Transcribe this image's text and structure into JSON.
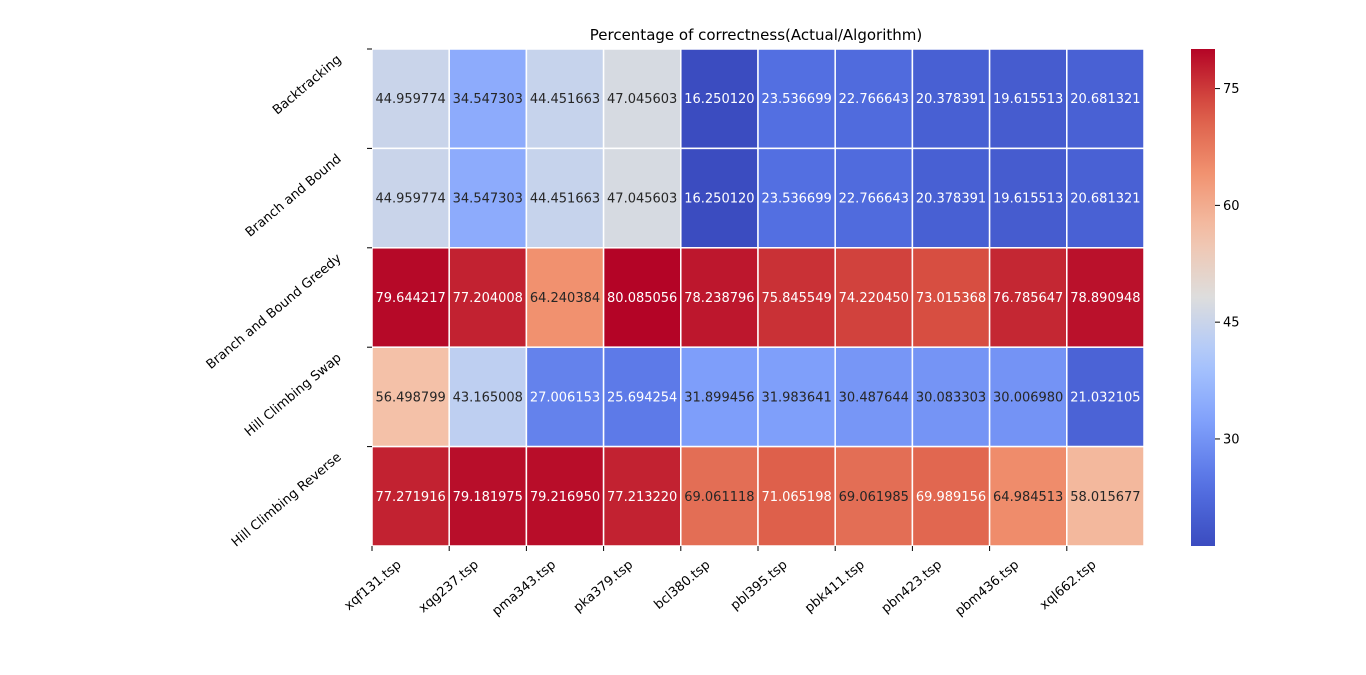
{
  "chart_data": {
    "type": "heatmap",
    "title": "Percentage of correctness(Actual/Algorithm)",
    "xlabel": "",
    "ylabel": "",
    "x_categories": [
      "xqf131.tsp",
      "xqg237.tsp",
      "pma343.tsp",
      "pka379.tsp",
      "bcl380.tsp",
      "pbl395.tsp",
      "pbk411.tsp",
      "pbn423.tsp",
      "pbm436.tsp",
      "xql662.tsp"
    ],
    "y_categories": [
      "Backtracking",
      "Branch and Bound",
      "Branch and Bound Greedy",
      "Hill Climbing Swap",
      "Hill Climbing Reverse"
    ],
    "values": [
      [
        44.959774,
        34.547303,
        44.451663,
        47.045603,
        16.25012,
        23.536699,
        22.766643,
        20.378391,
        19.615513,
        20.681321
      ],
      [
        44.959774,
        34.547303,
        44.451663,
        47.045603,
        16.25012,
        23.536699,
        22.766643,
        20.378391,
        19.615513,
        20.681321
      ],
      [
        79.644217,
        77.204008,
        64.240384,
        80.085056,
        78.238796,
        75.845549,
        74.22045,
        73.015368,
        76.785647,
        78.890948
      ],
      [
        56.498799,
        43.165008,
        27.006153,
        25.694254,
        31.899456,
        31.983641,
        30.487644,
        30.083303,
        30.00698,
        21.032105
      ],
      [
        77.271916,
        79.181975,
        79.21695,
        77.21322,
        69.061118,
        71.065198,
        69.061985,
        69.989156,
        64.984513,
        58.015677
      ]
    ],
    "value_labels": [
      [
        "44.959774",
        "34.547303",
        "44.451663",
        "47.045603",
        "16.250120",
        "23.536699",
        "22.766643",
        "20.378391",
        "19.615513",
        "20.681321"
      ],
      [
        "44.959774",
        "34.547303",
        "44.451663",
        "47.045603",
        "16.250120",
        "23.536699",
        "22.766643",
        "20.378391",
        "19.615513",
        "20.681321"
      ],
      [
        "79.644217",
        "77.204008",
        "64.240384",
        "80.085056",
        "78.238796",
        "75.845549",
        "74.220450",
        "73.015368",
        "76.785647",
        "78.890948"
      ],
      [
        "56.498799",
        "43.165008",
        "27.006153",
        "25.694254",
        "31.899456",
        "31.983641",
        "30.487644",
        "30.083303",
        "30.006980",
        "21.032105"
      ],
      [
        "77.271916",
        "79.181975",
        "79.216950",
        "77.213220",
        "69.061118",
        "71.065198",
        "69.061985",
        "69.989156",
        "64.984513",
        "58.015677"
      ]
    ],
    "colormap": "coolwarm",
    "vmin": 16.25012,
    "vmax": 80.085056,
    "colorbar_ticks": [
      30,
      45,
      60,
      75
    ],
    "colorbar_tick_labels": [
      "30",
      "45",
      "60",
      "75"
    ],
    "colors": {
      "low": "#3b4cc0",
      "mid": "#dddddd",
      "high": "#b40426",
      "cell_border": "#ffffff",
      "dark_text": "#262626",
      "light_text": "#ffffff"
    }
  }
}
